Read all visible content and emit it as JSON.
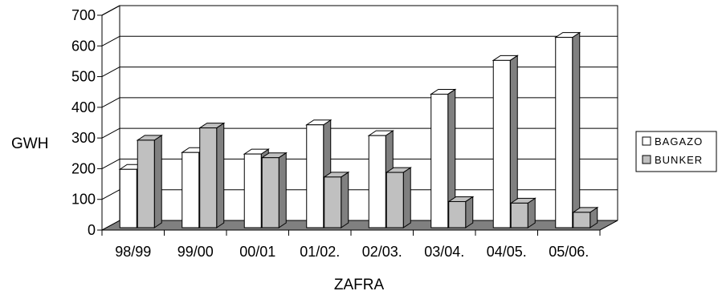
{
  "chart_data": {
    "type": "bar",
    "categories": [
      "98/99",
      "99/00",
      "00/01",
      "01/02.",
      "02/03.",
      "03/04.",
      "04/05.",
      "05/06."
    ],
    "series": [
      {
        "name": "BAGAZO",
        "values": [
          190,
          245,
          240,
          335,
          300,
          435,
          545,
          620
        ],
        "color": "#ffffff"
      },
      {
        "name": "BUNKER",
        "values": [
          285,
          325,
          228,
          165,
          180,
          85,
          80,
          50
        ],
        "color": "#c0c0c0"
      }
    ],
    "xlabel": "ZAFRA",
    "ylabel": "GWH",
    "ylim": [
      0,
      700
    ],
    "yticks": [
      "0",
      "100",
      "200",
      "300",
      "400",
      "500",
      "600",
      "700"
    ],
    "grid": true,
    "legend": "right",
    "style": "3d-clustered-column",
    "floor_color": "#808080",
    "side_color": "#808080"
  }
}
